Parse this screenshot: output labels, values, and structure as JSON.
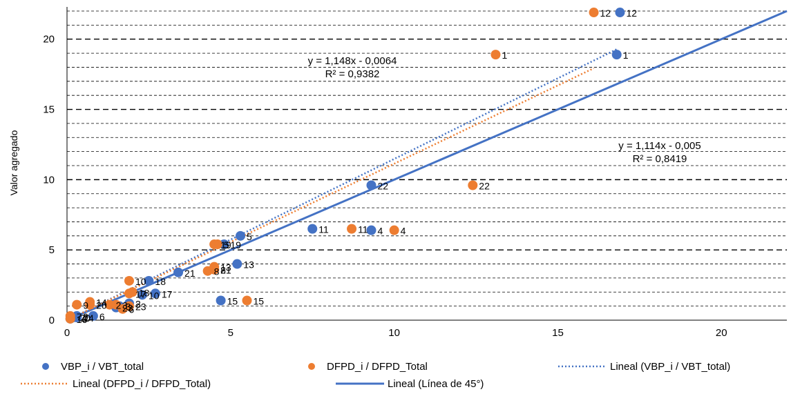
{
  "chart_data": {
    "type": "scatter",
    "title": "",
    "xlabel": "",
    "ylabel": "Valor agregado",
    "xlim": [
      0,
      22
    ],
    "ylim": [
      0,
      22
    ],
    "x_ticks": [
      0,
      5,
      10,
      15,
      20
    ],
    "x_tick_labels": [
      "0",
      "5",
      "10",
      "15",
      "20"
    ],
    "y_ticks": [
      0,
      5,
      10,
      15,
      20
    ],
    "y_tick_labels": [
      "0",
      "5",
      "10",
      "15",
      "20"
    ],
    "grid": "horizontal dashed lines at every 1 unit",
    "legend_position": "bottom",
    "colors": {
      "blue": "#4472c4",
      "orange": "#ed7d31",
      "gray": "#a5a5a5"
    },
    "series": [
      {
        "name": "VBP_i / VBT_total",
        "kind": "points",
        "color": "#4472c4",
        "points": [
          {
            "x": 16.8,
            "y": 18.9,
            "label": "1"
          },
          {
            "x": 1.9,
            "y": 1.2,
            "label": "2"
          },
          {
            "x": 1.6,
            "y": 1.0,
            "label": "3"
          },
          {
            "x": 9.3,
            "y": 6.4,
            "label": "4"
          },
          {
            "x": 5.3,
            "y": 6.0,
            "label": "5"
          },
          {
            "x": 0.8,
            "y": 0.3,
            "label": "6"
          },
          {
            "x": 0.3,
            "y": 0.2,
            "label": "7"
          },
          {
            "x": 4.5,
            "y": 3.6,
            "label": "8"
          },
          {
            "x": 0.3,
            "y": 0.3,
            "label": "9"
          },
          {
            "x": 2.3,
            "y": 1.8,
            "label": "10"
          },
          {
            "x": 7.5,
            "y": 6.5,
            "label": "11"
          },
          {
            "x": 16.9,
            "y": 21.9,
            "label": "12"
          },
          {
            "x": 5.2,
            "y": 4.0,
            "label": "13"
          },
          {
            "x": 0.3,
            "y": 0.2,
            "label": "14"
          },
          {
            "x": 4.7,
            "y": 1.4,
            "label": "15"
          },
          {
            "x": 0.1,
            "y": 0.1,
            "label": "16"
          },
          {
            "x": 2.7,
            "y": 1.9,
            "label": "17"
          },
          {
            "x": 2.5,
            "y": 2.8,
            "label": "18"
          },
          {
            "x": 4.8,
            "y": 5.4,
            "label": "19"
          },
          {
            "x": 0.2,
            "y": 0.2,
            "label": "20"
          },
          {
            "x": 3.4,
            "y": 3.4,
            "label": "21"
          },
          {
            "x": 9.3,
            "y": 9.6,
            "label": "22"
          },
          {
            "x": 1.5,
            "y": 0.9,
            "label": "23"
          }
        ]
      },
      {
        "name": "DFPD_i / DFPD_Total",
        "kind": "points",
        "color": "#ed7d31",
        "points": [
          {
            "x": 13.1,
            "y": 18.9,
            "label": "1"
          },
          {
            "x": 1.3,
            "y": 1.1,
            "label": "2"
          },
          {
            "x": 1.5,
            "y": 1.1,
            "label": "3"
          },
          {
            "x": 10.0,
            "y": 6.4,
            "label": "4"
          },
          {
            "x": 4.6,
            "y": 5.4,
            "label": "5"
          },
          {
            "x": 1.7,
            "y": 0.8,
            "label": "6"
          },
          {
            "x": 0.1,
            "y": 0.3,
            "label": "7"
          },
          {
            "x": 4.3,
            "y": 3.5,
            "label": "8"
          },
          {
            "x": 0.3,
            "y": 1.1,
            "label": "9"
          },
          {
            "x": 1.9,
            "y": 2.8,
            "label": "10"
          },
          {
            "x": 8.7,
            "y": 6.5,
            "label": "11"
          },
          {
            "x": 16.1,
            "y": 21.9,
            "label": "12"
          },
          {
            "x": 4.5,
            "y": 3.8,
            "label": "13"
          },
          {
            "x": 0.7,
            "y": 1.3,
            "label": "14"
          },
          {
            "x": 5.5,
            "y": 1.4,
            "label": "15"
          },
          {
            "x": 0.1,
            "y": 0.1,
            "label": "16"
          },
          {
            "x": 1.9,
            "y": 1.9,
            "label": "17"
          },
          {
            "x": 2.0,
            "y": 2.0,
            "label": "18"
          },
          {
            "x": 4.5,
            "y": 5.4,
            "label": "19"
          },
          {
            "x": 0.7,
            "y": 1.1,
            "label": "20"
          },
          {
            "x": 4.5,
            "y": 3.6,
            "label": "21"
          },
          {
            "x": 12.4,
            "y": 9.6,
            "label": "22"
          },
          {
            "x": 1.9,
            "y": 1.0,
            "label": "23"
          }
        ]
      },
      {
        "name": "Lineal (VBP_i / VBT_total)",
        "kind": "trendline",
        "style": "dotted",
        "color": "#4472c4",
        "equation": "y = 1,148x - 0,0064",
        "r2": "R² = 0,9382",
        "slope": 1.148,
        "intercept": -0.0064,
        "x_range": [
          0,
          16.8
        ]
      },
      {
        "name": "Lineal (DFPD_i / DFPD_Total)",
        "kind": "trendline",
        "style": "dotted",
        "color": "#ed7d31",
        "equation": "y = 1,114x - 0,005",
        "r2": "R² = 0,8419",
        "slope": 1.114,
        "intercept": -0.005,
        "x_range": [
          0,
          16.1
        ]
      },
      {
        "name": "Lineal (Línea de 45°)",
        "kind": "line",
        "style": "solid",
        "color": "#4472c4",
        "x": [
          0,
          22
        ],
        "y": [
          0,
          22
        ]
      }
    ]
  }
}
